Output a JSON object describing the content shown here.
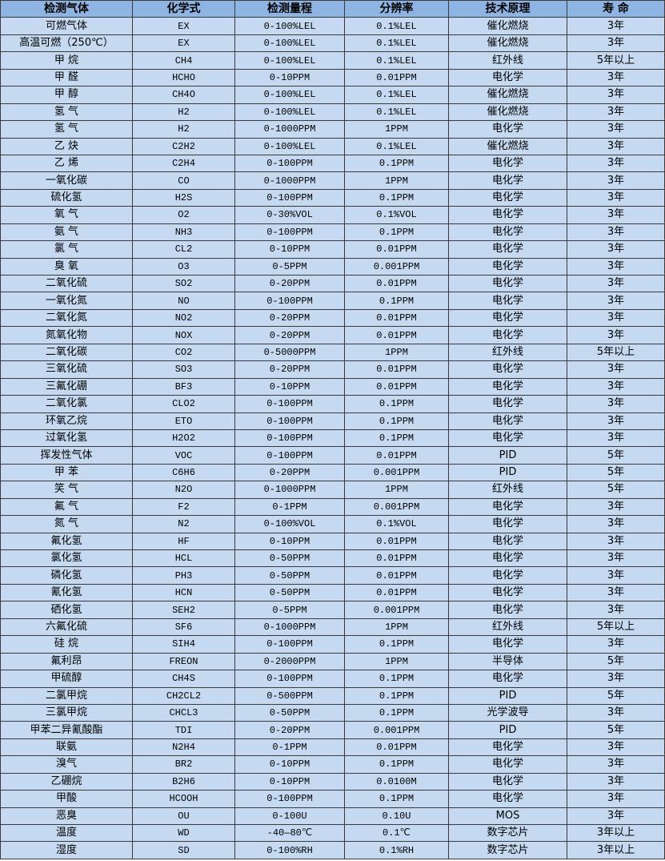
{
  "colors": {
    "header_bg": "#8db4e2",
    "row_bg": "#c5d9f1",
    "border": "#3a3a3a"
  },
  "headers": [
    "检测气体",
    "化学式",
    "检测量程",
    "分辨率",
    "技术原理",
    "寿 命"
  ],
  "rows": [
    [
      "可燃气体",
      "EX",
      "0-100%LEL",
      "0.1%LEL",
      "催化燃烧",
      "3年"
    ],
    [
      "高温可燃（250℃）",
      "EX",
      "0-100%LEL",
      "0.1%LEL",
      "催化燃烧",
      "3年"
    ],
    [
      "甲 烷",
      "CH4",
      "0-100%LEL",
      "0.1%LEL",
      "红外线",
      "5年以上"
    ],
    [
      "甲 醛",
      "HCHO",
      "0-10PPM",
      "0.01PPM",
      "电化学",
      "3年"
    ],
    [
      "甲 醇",
      "CH4O",
      "0-100%LEL",
      "0.1%LEL",
      "催化燃烧",
      "3年"
    ],
    [
      "氢 气",
      "H2",
      "0-100%LEL",
      "0.1%LEL",
      "催化燃烧",
      "3年"
    ],
    [
      "氢 气",
      "H2",
      "0-1000PPM",
      "1PPM",
      "电化学",
      "3年"
    ],
    [
      "乙 炔",
      "C2H2",
      "0-100%LEL",
      "0.1%LEL",
      "催化燃烧",
      "3年"
    ],
    [
      "乙 烯",
      "C2H4",
      "0-100PPM",
      "0.1PPM",
      "电化学",
      "3年"
    ],
    [
      "一氧化碳",
      "CO",
      "0-1000PPM",
      "1PPM",
      "电化学",
      "3年"
    ],
    [
      "硫化氢",
      "H2S",
      "0-100PPM",
      "0.1PPM",
      "电化学",
      "3年"
    ],
    [
      "氧 气",
      "O2",
      "0-30%VOL",
      "0.1%VOL",
      "电化学",
      "3年"
    ],
    [
      "氨 气",
      "NH3",
      "0-100PPM",
      "0.1PPM",
      "电化学",
      "3年"
    ],
    [
      "氯 气",
      "CL2",
      "0-10PPM",
      "0.01PPM",
      "电化学",
      "3年"
    ],
    [
      "臭 氧",
      "O3",
      "0-5PPM",
      "0.001PPM",
      "电化学",
      "3年"
    ],
    [
      "二氧化硫",
      "SO2",
      "0-20PPM",
      "0.01PPM",
      "电化学",
      "3年"
    ],
    [
      "一氧化氮",
      "NO",
      "0-100PPM",
      "0.1PPM",
      "电化学",
      "3年"
    ],
    [
      "二氧化氮",
      "NO2",
      "0-20PPM",
      "0.01PPM",
      "电化学",
      "3年"
    ],
    [
      "氮氧化物",
      "NOX",
      "0-20PPM",
      "0.01PPM",
      "电化学",
      "3年"
    ],
    [
      "二氧化碳",
      "CO2",
      "0-5000PPM",
      "1PPM",
      "红外线",
      "5年以上"
    ],
    [
      "三氧化硫",
      "SO3",
      "0-20PPM",
      "0.01PPM",
      "电化学",
      "3年"
    ],
    [
      "三氟化硼",
      "BF3",
      "0-10PPM",
      "0.01PPM",
      "电化学",
      "3年"
    ],
    [
      "二氧化氯",
      "CLO2",
      "0-100PPM",
      "0.1PPM",
      "电化学",
      "3年"
    ],
    [
      "环氧乙烷",
      "ETO",
      "0-100PPM",
      "0.1PPM",
      "电化学",
      "3年"
    ],
    [
      "过氧化氢",
      "H2O2",
      "0-100PPM",
      "0.1PPM",
      "电化学",
      "3年"
    ],
    [
      "挥发性气体",
      "VOC",
      "0-100PPM",
      "0.01PPM",
      "PID",
      "5年"
    ],
    [
      "甲 苯",
      "C6H6",
      "0-20PPM",
      "0.001PPM",
      "PID",
      "5年"
    ],
    [
      "笑 气",
      "N2O",
      "0-1000PPM",
      "1PPM",
      "红外线",
      "5年"
    ],
    [
      "氟 气",
      "F2",
      "0-1PPM",
      "0.001PPM",
      "电化学",
      "3年"
    ],
    [
      "氮 气",
      "N2",
      "0-100%VOL",
      "0.1%VOL",
      "电化学",
      "3年"
    ],
    [
      "氟化氢",
      "HF",
      "0-10PPM",
      "0.01PPM",
      "电化学",
      "3年"
    ],
    [
      "氯化氢",
      "HCL",
      "0-50PPM",
      "0.01PPM",
      "电化学",
      "3年"
    ],
    [
      "磷化氢",
      "PH3",
      "0-50PPM",
      "0.01PPM",
      "电化学",
      "3年"
    ],
    [
      "氰化氢",
      "HCN",
      "0-50PPM",
      "0.01PPM",
      "电化学",
      "3年"
    ],
    [
      "硒化氢",
      "SEH2",
      "0-5PPM",
      "0.001PPM",
      "电化学",
      "3年"
    ],
    [
      "六氟化硫",
      "SF6",
      "0-1000PPM",
      "1PPM",
      "红外线",
      "5年以上"
    ],
    [
      "硅 烷",
      "SIH4",
      "0-100PPM",
      "0.1PPM",
      "电化学",
      "3年"
    ],
    [
      "氟利昂",
      "FREON",
      "0-2000PPM",
      "1PPM",
      "半导体",
      "5年"
    ],
    [
      "甲硫醇",
      "CH4S",
      "0-100PPM",
      "0.1PPM",
      "电化学",
      "3年"
    ],
    [
      "二氯甲烷",
      "CH2CL2",
      "0-500PPM",
      "0.1PPM",
      "PID",
      "5年"
    ],
    [
      "三氯甲烷",
      "CHCL3",
      "0-50PPM",
      "0.1PPM",
      "光学波导",
      "3年"
    ],
    [
      "甲苯二异氰酸酯",
      "TDI",
      "0-20PPM",
      "0.001PPM",
      "PID",
      "5年"
    ],
    [
      "联氨",
      "N2H4",
      "0-1PPM",
      "0.01PPM",
      "电化学",
      "3年"
    ],
    [
      "溴气",
      "BR2",
      "0-10PPM",
      "0.1PPM",
      "电化学",
      "3年"
    ],
    [
      "乙硼烷",
      "B2H6",
      "0-10PPM",
      "0.0100M",
      "电化学",
      "3年"
    ],
    [
      "甲酸",
      "HCOOH",
      "0-100PPM",
      "0.1PPM",
      "电化学",
      "3年"
    ],
    [
      "恶臭",
      "OU",
      "0-100U",
      "0.10U",
      "MOS",
      "3年"
    ],
    [
      "温度",
      "WD",
      "-40—80℃",
      "0.1℃",
      "数字芯片",
      "3年以上"
    ],
    [
      "湿度",
      "SD",
      "0-100%RH",
      "0.1%RH",
      "数字芯片",
      "3年以上"
    ]
  ]
}
